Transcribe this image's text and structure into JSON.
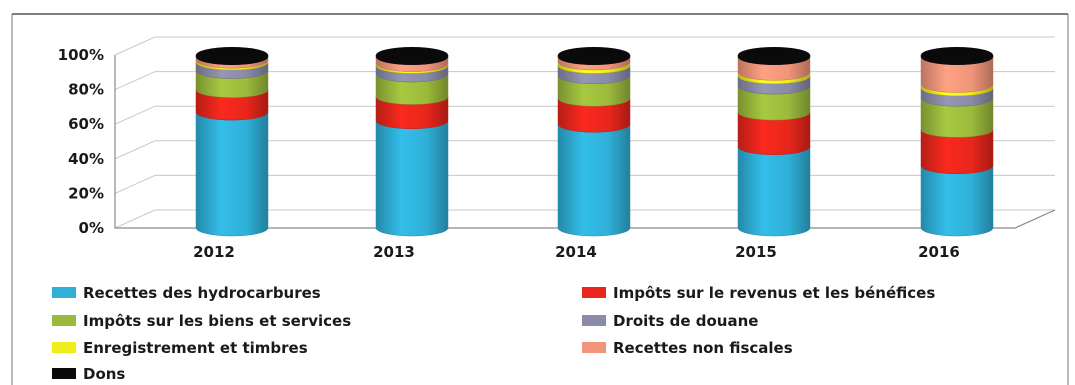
{
  "chart_data": {
    "type": "bar",
    "stacked": true,
    "percent": true,
    "categories": [
      "2012",
      "2013",
      "2014",
      "2015",
      "2016"
    ],
    "y_ticks": [
      "0%",
      "20%",
      "40%",
      "60%",
      "80%",
      "100%"
    ],
    "ylim": [
      0,
      100
    ],
    "legend_position": "bottom",
    "series": [
      {
        "name": "Recettes des hydrocarbures",
        "color": "#2fb0d8",
        "values": [
          67,
          62,
          60,
          47,
          36
        ]
      },
      {
        "name": "Impôts sur le revenus et les bénéfices",
        "color": "#e8261c",
        "values": [
          13,
          14,
          15,
          20,
          21
        ]
      },
      {
        "name": "Impôts sur les biens et services",
        "color": "#9bba3c",
        "values": [
          11,
          13,
          13,
          15,
          18
        ]
      },
      {
        "name": "Droits de douane",
        "color": "#8a8ba8",
        "values": [
          5,
          5,
          6,
          6,
          6
        ]
      },
      {
        "name": "Enregistrement et timbres",
        "color": "#f2ec1c",
        "values": [
          1,
          1,
          2,
          2,
          2
        ]
      },
      {
        "name": "Recettes non fiscales",
        "color": "#f0957a",
        "values": [
          2,
          4,
          3,
          9,
          16
        ]
      },
      {
        "name": "Dons",
        "color": "#0a0a0a",
        "values": [
          1,
          1,
          1,
          1,
          1
        ]
      }
    ]
  }
}
